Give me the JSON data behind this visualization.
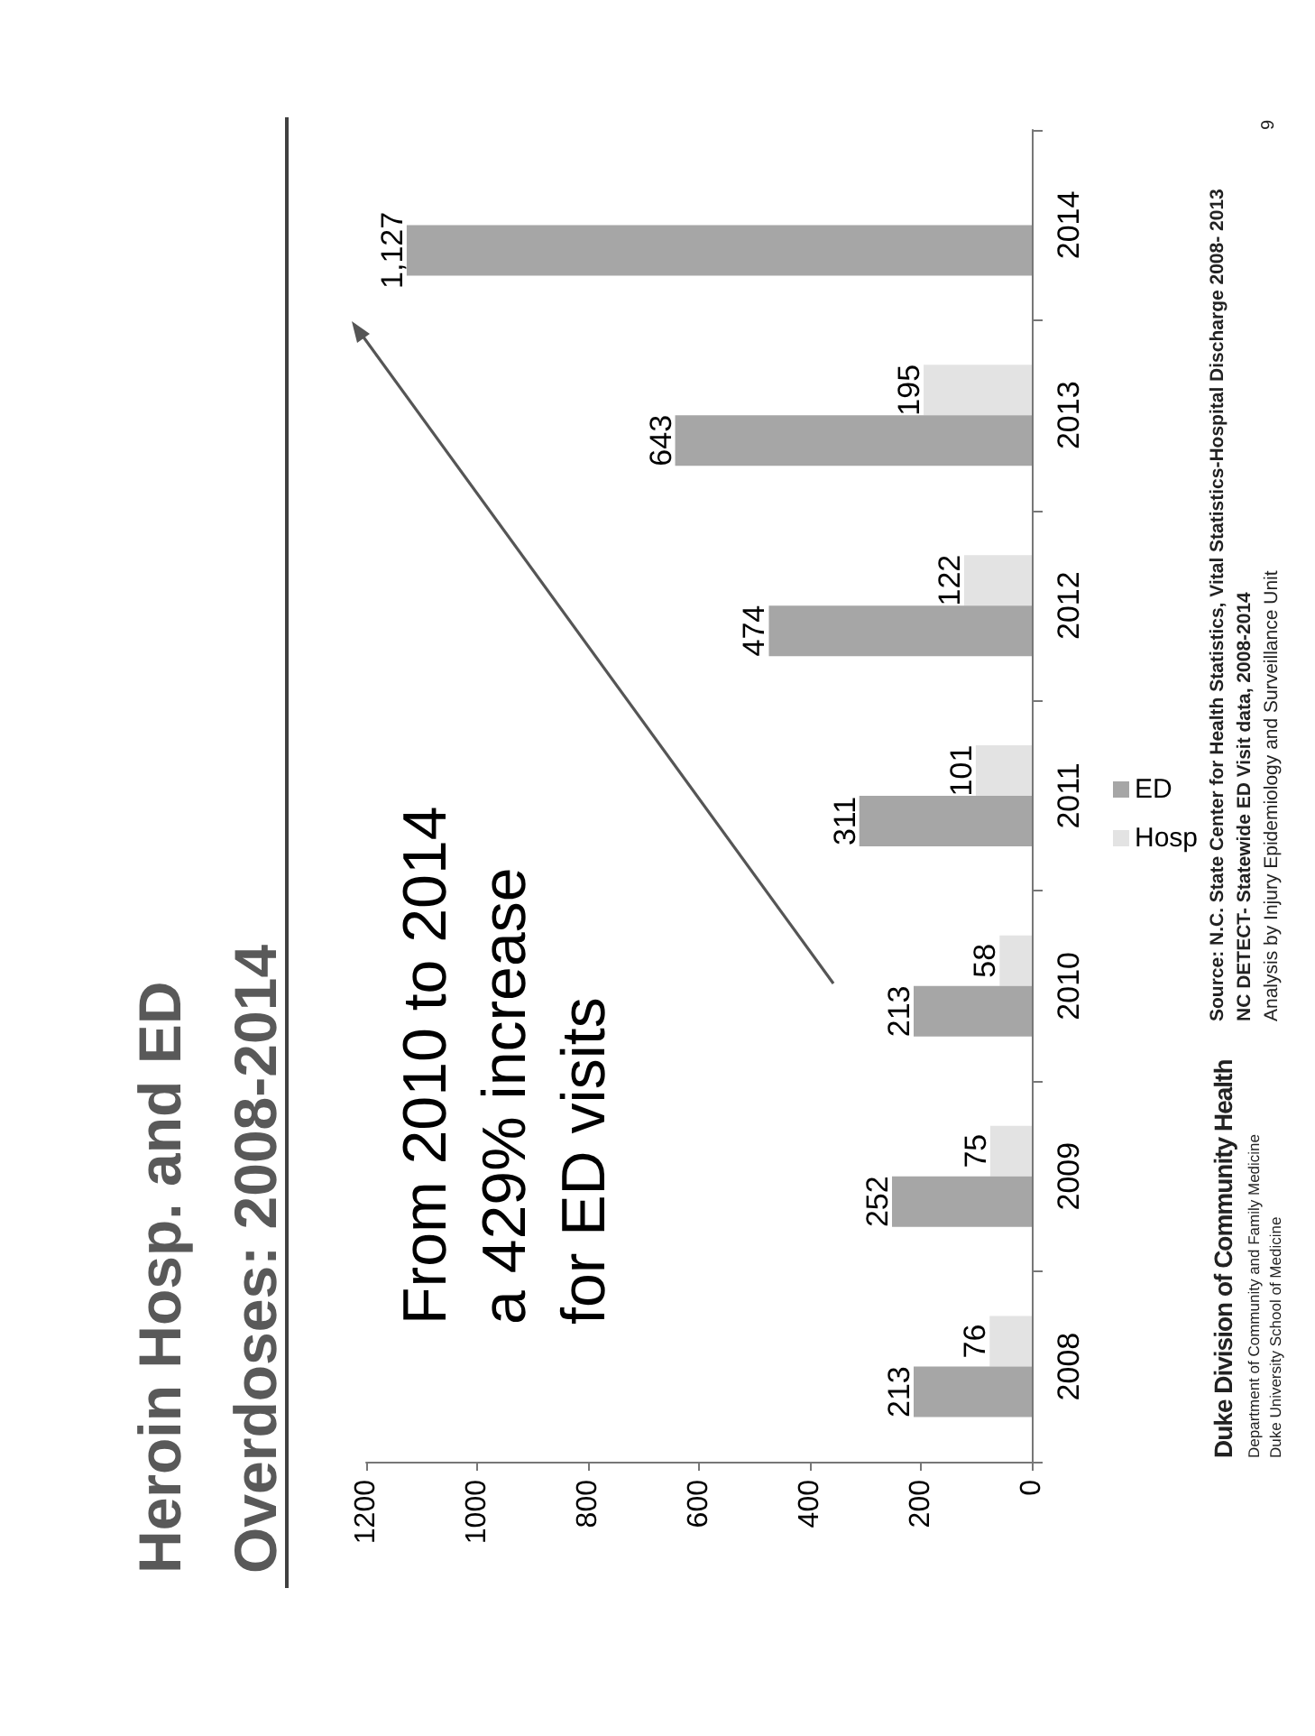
{
  "chart_data": {
    "type": "bar",
    "orientation": "horizontal",
    "title": "Heroin Hosp. and ED\nOverdoses: 2008-2014",
    "categories": [
      "2014",
      "2013",
      "2012",
      "2011",
      "2010",
      "2009",
      "2008"
    ],
    "series": [
      {
        "name": "ED",
        "color": "#a6a6a6",
        "values": [
          1127,
          643,
          474,
          311,
          213,
          252,
          213
        ],
        "value_labels": [
          "1,127",
          "643",
          "474",
          "311",
          "213",
          "252",
          "213"
        ]
      },
      {
        "name": "Hosp",
        "color": "#e3e3e3",
        "values": [
          null,
          195,
          122,
          101,
          58,
          75,
          76
        ],
        "value_labels": [
          null,
          "195",
          "122",
          "101",
          "58",
          "75",
          "76"
        ]
      }
    ],
    "xlim": [
      1200,
      0
    ],
    "xticks": [
      1200,
      1000,
      800,
      600,
      400,
      200,
      0
    ],
    "grid": false,
    "legend": "right",
    "annotations": [
      "From 2010 to 2014\na 429% increase\nfor ED visits",
      "Source: N.C. State Center for Health Statistics, Vital Statistics-Hospital Discharge 2008- 2013",
      "NC DETECT- Statewide ED Visit data, 2008-2014",
      "Analysis by Injury Epidemiology and Surveillance Unit",
      "Duke Division of Community Health",
      "Department of Community and Family Medicine",
      "Duke University School of Medicine",
      "9"
    ]
  }
}
